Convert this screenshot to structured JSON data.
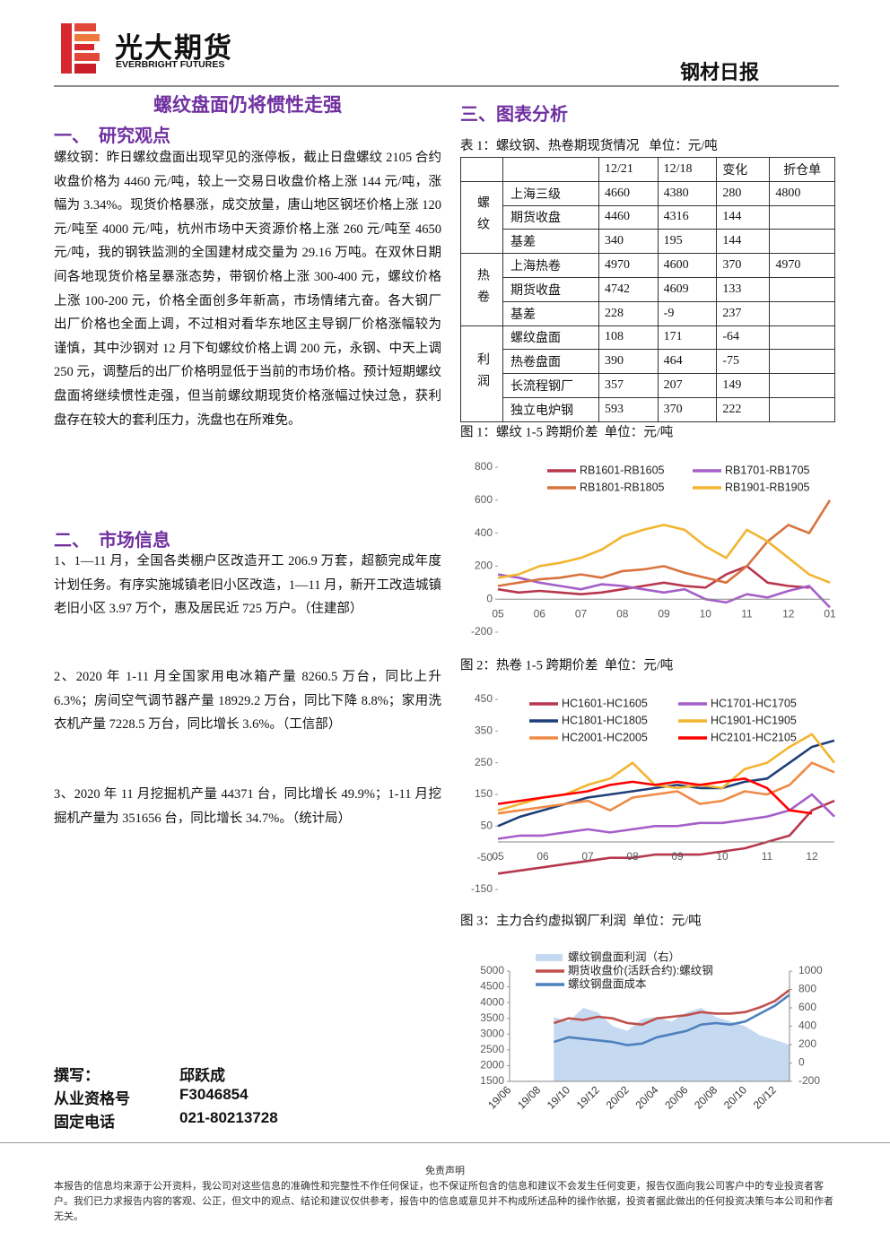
{
  "header": {
    "brand": "光大期货",
    "brand_en": "EVERBRIGHT FUTURES",
    "report": "钢材日报"
  },
  "left": {
    "title": "螺纹盘面仍将惯性走强",
    "section1": "一、  研究观点",
    "paragraph": "螺纹钢：昨日螺纹盘面出现罕见的涨停板，截止日盘螺纹 2105 合约收盘价格为 4460 元/吨，较上一交易日收盘价格上涨 144 元/吨，涨幅为 3.34%。现货价格暴涨，成交放量，唐山地区钢坯价格上涨 120 元/吨至 4000 元/吨，杭州市场中天资源价格上涨 260 元/吨至 4650 元/吨，我的钢铁监测的全国建材成交量为 29.16 万吨。在双休日期间各地现货价格呈暴涨态势，带钢价格上涨 300-400 元，螺纹价格上涨 100-200 元，价格全面创多年新高，市场情绪亢奋。各大钢厂出厂价格也全面上调，不过相对看华东地区主导钢厂价格涨幅较为谨慎，其中沙钢对 12 月下旬螺纹价格上调 200 元，永钢、中天上调 250 元，调整后的出厂价格明显低于当前的市场价格。预计短期螺纹盘面将继续惯性走强，但当前螺纹期现货价格涨幅过快过急，获利盘存在较大的套利压力，洗盘也在所难免。",
    "section2": "二、  市场信息",
    "items": [
      "1、1—11 月，全国各类棚户区改造开工 206.9 万套，超额完成年度计划任务。有序实施城镇老旧小区改造，1—11 月，新开工改造城镇老旧小区 3.97 万个，惠及居民近 725 万户。（住建部）",
      "2、2020 年 1-11 月全国家用电冰箱产量 8260.5 万台，同比上升 6.3%；房间空气调节器产量 18929.2 万台，同比下降 8.8%；家用洗衣机产量 7228.5 万台，同比增长 3.6%。（工信部）",
      "3、2020 年 11 月挖掘机产量 44371 台，同比增长 49.9%；1-11 月挖掘机产量为 351656 台，同比增长 34.7%。（统计局）"
    ],
    "authors": [
      [
        "撰写：",
        "邱跃成"
      ],
      [
        "从业资格号",
        "F3046854"
      ],
      [
        "固定电话",
        "021-80213728"
      ]
    ]
  },
  "right": {
    "section3": "三、图表分析",
    "table": {
      "caption": "表 1：螺纹钢、热卷期现货情况   单位：元/吨",
      "columns": [
        "12/21",
        "12/18",
        "变化",
        "折仓单"
      ],
      "groups": [
        {
          "label": "螺纹",
          "rows": [
            [
              "上海三级",
              4660,
              4380,
              280,
              4800
            ],
            [
              "期货收盘",
              4460,
              4316,
              144,
              null
            ],
            [
              "基差",
              340,
              195,
              144,
              null
            ]
          ]
        },
        {
          "label": "热卷",
          "rows": [
            [
              "上海热卷",
              4970,
              4600,
              370,
              4970
            ],
            [
              "期货收盘",
              4742,
              4609,
              133,
              null
            ],
            [
              "基差",
              228,
              -9,
              237,
              null
            ]
          ]
        },
        {
          "label": "利润",
          "rows": [
            [
              "螺纹盘面",
              108,
              171,
              -64,
              null
            ],
            [
              "热卷盘面",
              390,
              464,
              -75,
              null
            ],
            [
              "长流程钢厂",
              357,
              207,
              149,
              null
            ],
            [
              "独立电炉钢",
              593,
              370,
              222,
              null
            ]
          ]
        }
      ]
    }
  },
  "chart_data": [
    {
      "type": "line",
      "title": "图 1：螺纹 1-5 跨期价差  单位：元/吨",
      "categories": [
        "05",
        null,
        "06",
        null,
        "07",
        null,
        "08",
        null,
        "09",
        null,
        "10",
        null,
        "11",
        null,
        "12",
        null,
        "01"
      ],
      "ylim": [
        -200,
        800
      ],
      "yticks": [
        -200,
        0,
        200,
        400,
        600,
        800
      ],
      "series": [
        {
          "name": "RB1601-RB1605",
          "color": "#b8374f",
          "values": [
            60,
            40,
            50,
            40,
            30,
            40,
            60,
            80,
            100,
            80,
            70,
            150,
            200,
            100,
            80,
            70,
            null
          ]
        },
        {
          "name": "RB1701-RB1705",
          "color": "#a45fc9",
          "values": [
            150,
            130,
            100,
            80,
            60,
            90,
            80,
            60,
            40,
            60,
            0,
            -20,
            30,
            10,
            50,
            80,
            -50
          ]
        },
        {
          "name": "RB1801-RB1805",
          "color": "#d8733f",
          "values": [
            80,
            100,
            120,
            130,
            150,
            130,
            170,
            180,
            200,
            160,
            130,
            100,
            200,
            350,
            450,
            400,
            600
          ]
        },
        {
          "name": "RB1901-RB1905",
          "color": "#f2b530",
          "values": [
            130,
            150,
            200,
            220,
            250,
            300,
            380,
            420,
            450,
            420,
            320,
            250,
            420,
            350,
            250,
            150,
            100
          ]
        }
      ]
    },
    {
      "type": "line",
      "title": "图 2：热卷 1-5 跨期价差  单位：元/吨",
      "categories": [
        "05",
        null,
        "06",
        null,
        "07",
        null,
        "08",
        null,
        "09",
        null,
        "10",
        null,
        "11",
        null,
        "12",
        null
      ],
      "ylim": [
        -150,
        450
      ],
      "yticks": [
        -150,
        -50,
        50,
        150,
        250,
        350,
        450
      ],
      "series": [
        {
          "name": "HC1601-HC1605",
          "color": "#b8374f",
          "values": [
            -100,
            -90,
            -80,
            -70,
            -60,
            -50,
            -50,
            -40,
            -40,
            -40,
            -30,
            -20,
            0,
            20,
            100,
            130
          ]
        },
        {
          "name": "HC1701-HC1705",
          "color": "#a45fc9",
          "values": [
            10,
            20,
            20,
            30,
            40,
            30,
            40,
            50,
            50,
            60,
            60,
            70,
            80,
            100,
            150,
            80
          ]
        },
        {
          "name": "HC1801-HC1805",
          "color": "#1f3f7a",
          "values": [
            50,
            80,
            100,
            120,
            140,
            150,
            160,
            170,
            180,
            170,
            170,
            190,
            200,
            250,
            300,
            320
          ]
        },
        {
          "name": "HC1901-HC1905",
          "color": "#f2b530",
          "values": [
            100,
            120,
            140,
            150,
            180,
            200,
            250,
            180,
            170,
            180,
            170,
            230,
            250,
            300,
            340,
            250
          ]
        },
        {
          "name": "HC2001-HC2005",
          "color": "#f08a45",
          "values": [
            90,
            100,
            110,
            120,
            130,
            100,
            140,
            150,
            160,
            120,
            130,
            160,
            150,
            180,
            250,
            220
          ]
        },
        {
          "name": "HC2101-HC2105",
          "color": "#ff0000",
          "values": [
            120,
            130,
            140,
            150,
            160,
            180,
            190,
            180,
            190,
            180,
            190,
            200,
            170,
            100,
            90,
            null
          ]
        }
      ]
    },
    {
      "type": "line",
      "title": "图 3：主力合约虚拟钢厂利润  单位：元/吨",
      "rotate_labels": true,
      "categories": [
        "19/06",
        null,
        "19/08",
        null,
        "19/10",
        null,
        "19/12",
        null,
        "20/02",
        null,
        "20/04",
        null,
        "20/06",
        null,
        "20/08",
        null,
        "20/10",
        null,
        "20/12",
        null
      ],
      "ylim": [
        1500,
        5000
      ],
      "yticks": [
        1500,
        2000,
        2500,
        3000,
        3500,
        4000,
        4500,
        5000
      ],
      "y2lim": [
        -200,
        1000
      ],
      "y2ticks": [
        -200,
        0,
        200,
        400,
        600,
        800,
        1000
      ],
      "series": [
        {
          "name": "螺纹钢盘面利润（右）",
          "color": "#c5d9f1",
          "type": "area",
          "axis": "y2",
          "values": [
            null,
            null,
            null,
            500,
            450,
            600,
            550,
            400,
            350,
            480,
            500,
            450,
            550,
            600,
            500,
            450,
            400,
            300,
            250,
            200
          ]
        },
        {
          "name": "期货收盘价(活跃合约):螺纹钢",
          "color": "#c0504d",
          "values": [
            null,
            null,
            null,
            3350,
            3500,
            3450,
            3550,
            3500,
            3350,
            3300,
            3500,
            3550,
            3600,
            3700,
            3650,
            3650,
            3700,
            3850,
            4050,
            4400
          ]
        },
        {
          "name": "螺纹钢盘面成本",
          "color": "#4f81bd",
          "values": [
            null,
            null,
            null,
            2750,
            2900,
            2850,
            2800,
            2750,
            2650,
            2700,
            2900,
            3000,
            3100,
            3300,
            3350,
            3300,
            3400,
            3650,
            3900,
            4250
          ]
        }
      ]
    }
  ],
  "footer": {
    "title": "免责声明",
    "text": "本报告的信息均来源于公开资料，我公司对这些信息的准确性和完整性不作任何保证，也不保证所包含的信息和建议不会发生任何变更，报告仅面向我公司客户中的专业投资者客户。我们已力求报告内容的客观、公正，但文中的观点、结论和建议仅供参考，报告中的信息或意见并不构成所述品种的操作依据，投资者据此做出的任何投资决策与本公司和作者无关。"
  }
}
